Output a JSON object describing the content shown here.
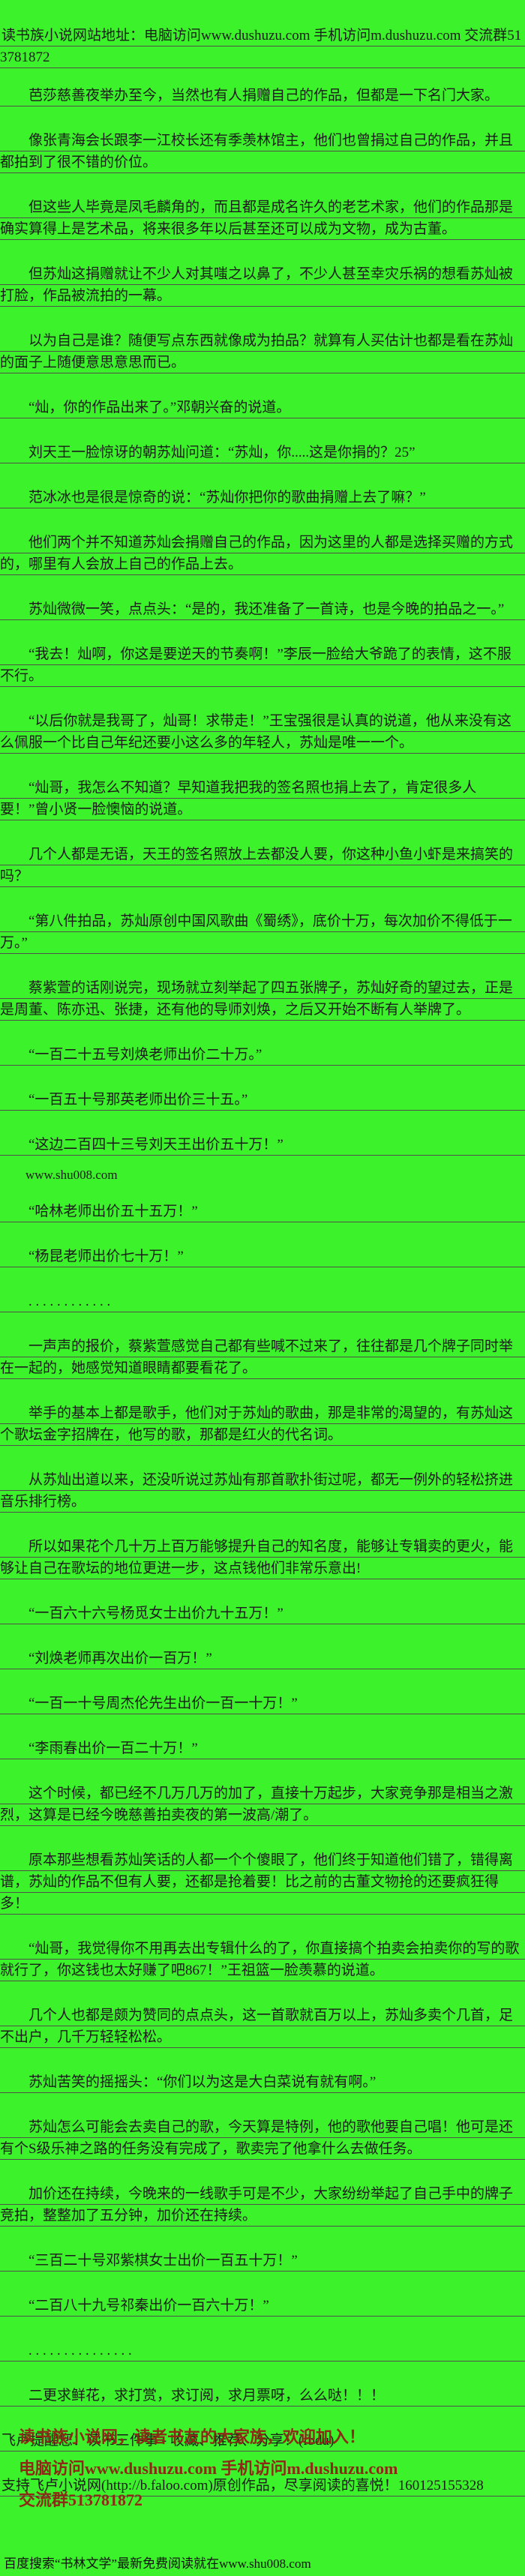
{
  "page": {
    "colors": {
      "background": "#3CF22A",
      "text": "#1B1B1B",
      "underline": "#4F4F4F",
      "promo_text": "#8C2A16"
    }
  },
  "paragraphs": [
    {
      "type": "notice",
      "text": "读书族小说网站地址：电脑访问www.dushuzu.com 手机访问m.dushuzu.com 交流群513781872"
    },
    {
      "type": "body",
      "text": "芭莎慈善夜举办至今，当然也有人捐赠自己的作品，但都是一下名门大家。"
    },
    {
      "type": "body",
      "text": "像张青海会长跟李一江校长还有季羡林馆主，他们也曾捐过自己的作品，并且都拍到了很不错的价位。"
    },
    {
      "type": "body",
      "text": "但这些人毕竟是凤毛麟角的，而且都是成名许久的老艺术家，他们的作品那是确实算得上是艺术品，将来很多年以后甚至还可以成为文物，成为古董。"
    },
    {
      "type": "body",
      "text": "但苏灿这捐赠就让不少人对其嗤之以鼻了，不少人甚至幸灾乐祸的想看苏灿被打脸，作品被流拍的一幕。"
    },
    {
      "type": "body",
      "text": "以为自己是谁？随便写点东西就像成为拍品？就算有人买估计也都是看在苏灿的面子上随便意思意思而已。"
    },
    {
      "type": "body",
      "text": "“灿，你的作品出来了。”邓朝兴奋的说道。"
    },
    {
      "type": "body",
      "text": "刘天王一脸惊讶的朝苏灿问道：“苏灿，你.....这是你捐的？25”"
    },
    {
      "type": "body",
      "text": "范冰冰也是很是惊奇的说：“苏灿你把你的歌曲捐赠上去了嘛？”"
    },
    {
      "type": "body",
      "text": "他们两个并不知道苏灿会捐赠自己的作品，因为这里的人都是选择买赠的方式的，哪里有人会放上自己的作品上去。"
    },
    {
      "type": "body",
      "text": "苏灿微微一笑，点点头：“是的，我还准备了一首诗，也是今晚的拍品之一。”"
    },
    {
      "type": "body",
      "text": "“我去！灿啊，你这是要逆天的节奏啊！”李辰一脸给大爷跪了的表情，这不服不行。"
    },
    {
      "type": "body",
      "text": "“以后你就是我哥了，灿哥！求带走！”王宝强很是认真的说道，他从来没有这么佩服一个比自己年纪还要小这么多的年轻人，苏灿是唯一一个。"
    },
    {
      "type": "body",
      "text": "“灿哥，我怎么不知道？早知道我把我的签名照也捐上去了，肯定很多人要！”曾小贤一脸懊恼的说道。"
    },
    {
      "type": "body",
      "text": "几个人都是无语，天王的签名照放上去都没人要，你这种小鱼小虾是来搞笑的吗？"
    },
    {
      "type": "body",
      "text": "“第八件拍品，苏灿原创中国风歌曲《蜀绣》，底价十万，每次加价不得低于一万。”"
    },
    {
      "type": "body",
      "text": "蔡紫萱的话刚说完，现场就立刻举起了四五张牌子，苏灿好奇的望过去，正是是周董、陈亦迅、张捷，还有他的导师刘焕，之后又开始不断有人举牌了。"
    },
    {
      "type": "body",
      "text": "“一百二十五号刘焕老师出价二十万。”"
    },
    {
      "type": "body",
      "text": "“一百五十号那英老师出价三十五。”"
    },
    {
      "type": "body",
      "text": "“这边二百四十三号刘天王出价五十万！”"
    },
    {
      "type": "small",
      "text": "www.shu008.com"
    },
    {
      "type": "body",
      "text": "“哈林老师出价五十五万！”"
    },
    {
      "type": "body",
      "text": "“杨昆老师出价七十万！”"
    },
    {
      "type": "body",
      "text": ". . . . . . . . . . . ."
    },
    {
      "type": "body",
      "text": "一声声的报价，蔡紫萱感觉自己都有些喊不过来了，往往都是几个牌子同时举在一起的，她感觉知道眼睛都要看花了。"
    },
    {
      "type": "body",
      "text": "举手的基本上都是歌手，他们对于苏灿的歌曲，那是非常的渴望的，有苏灿这个歌坛金字招牌在，他写的歌，那都是红火的代名词。"
    },
    {
      "type": "body",
      "text": "从苏灿出道以来，还没听说过苏灿有那首歌扑街过呢，都无一例外的轻松挤进音乐排行榜。"
    },
    {
      "type": "body",
      "text": "所以如果花个几十万上百万能够提升自己的知名度，能够让专辑卖的更火，能够让自己在歌坛的地位更进一步，这点钱他们非常乐意出!"
    },
    {
      "type": "body",
      "text": "“一百六十六号杨觅女士出价九十五万！”"
    },
    {
      "type": "body",
      "text": "“刘焕老师再次出价一百万！”"
    },
    {
      "type": "body",
      "text": "“一百一十号周杰伦先生出价一百一十万！”"
    },
    {
      "type": "body",
      "text": "“李雨春出价一百二十万！”"
    },
    {
      "type": "body",
      "text": "这个时候，都已经不几万几万的加了，直接十万起步，大家竞争那是相当之激烈，这算是已经今晚慈善拍卖夜的第一波高/潮了。"
    },
    {
      "type": "body",
      "text": "原本那些想看苏灿笑话的人都一个个傻眼了，他们终于知道他们错了，错得离谱，苏灿的作品不但有人要，还都是抢着要！比之前的古董文物抢的还要疯狂得多！"
    },
    {
      "type": "body",
      "text": "“灿哥，我觉得你不用再去出专辑什么的了，你直接搞个拍卖会拍卖你的写的歌就行了，你这钱也太好赚了吧867！”王祖篮一脸羡慕的说道。"
    },
    {
      "type": "body",
      "text": "几个人也都是颇为赞同的点点头，这一首歌就百万以上，苏灿多卖个几首，足不出户，几千万轻轻松松。"
    },
    {
      "type": "body",
      "text": "苏灿苦笑的摇摇头：“你们以为这是大白菜说有就有啊。”"
    },
    {
      "type": "body",
      "text": "苏灿怎么可能会去卖自己的歌，今天算是特例，他的歌他要自己唱！他可是还有个S级乐神之路的任务没有完成了，歌卖完了他拿什么去做任务。"
    },
    {
      "type": "body",
      "text": "加价还在持续，今晚来的一线歌手可是不少，大家纷纷举起了自己手中的牌子竞拍，整整加了五分钟，加价还在持续。"
    },
    {
      "type": "body",
      "text": "“三百二十号邓紫棋女士出价一百五十万！”"
    },
    {
      "type": "body",
      "text": "“二百八十九号祁秦出价一百六十万！”"
    },
    {
      "type": "body",
      "text": ". . . . . . . . . . . . . . ."
    },
    {
      "type": "body",
      "text": "二更求鲜花，求打赏，求订阅，求月票呀，么么哒！！！"
    },
    {
      "type": "noindent",
      "text": "飞卢提醒您：读书三件事 - 收藏、推荐、分享！(fbdu)"
    },
    {
      "type": "noindent",
      "text": "支持飞卢小说网(http://b.faloo.com)原创作品，尽享阅读的喜悦！160125155328"
    }
  ],
  "footer": {
    "promo": [
      "读书族小说网，读者书友的大家族，欢迎加入！",
      "电脑访问www.dushuzu.com 手机访问m.dushuzu.com",
      "交流群513781872"
    ],
    "bottom_line": "百度搜索“书林文学”最新免费阅读就在www.shu008.com"
  }
}
